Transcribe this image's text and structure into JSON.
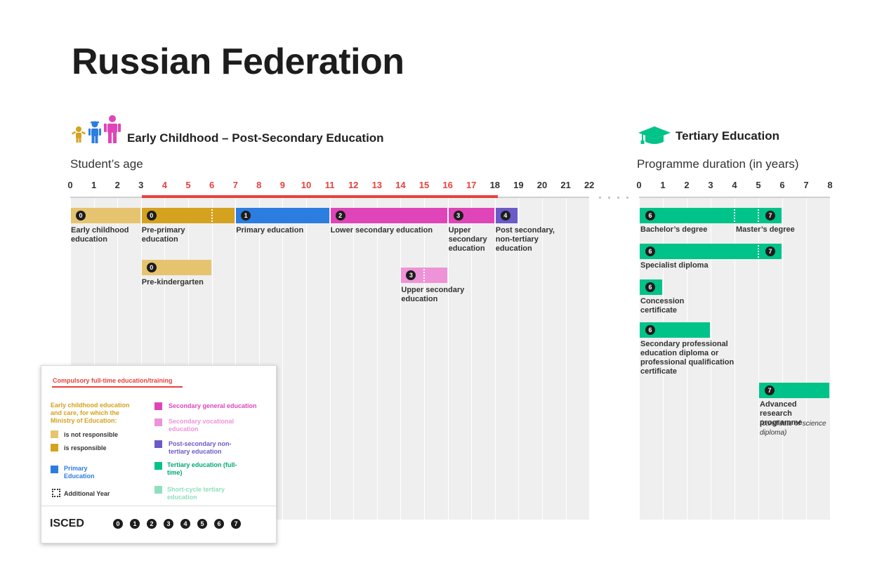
{
  "title": "Russian Federation",
  "left_section": {
    "title": "Early Childhood – Post-Secondary Education",
    "axis_title": "Student’s age",
    "ticks": [
      "0",
      "1",
      "2",
      "3",
      "4",
      "5",
      "6",
      "7",
      "8",
      "9",
      "10",
      "11",
      "12",
      "13",
      "14",
      "15",
      "16",
      "17",
      "18",
      "19",
      "20",
      "21",
      "22"
    ],
    "compulsory_range": [
      3,
      18
    ],
    "compulsory_tick_color": "#e8413c"
  },
  "right_section": {
    "title": "Tertiary Education",
    "axis_title": "Programme duration (in years)",
    "ticks": [
      "0",
      "1",
      "2",
      "3",
      "4",
      "5",
      "6",
      "7",
      "8"
    ]
  },
  "colors": {
    "ec_not_responsible": "#e6c46f",
    "ec_responsible": "#d4a21e",
    "primary": "#2b7de0",
    "secondary_general": "#df45b8",
    "secondary_vocational": "#ee93d8",
    "post_secondary": "#6b5bc8",
    "tertiary": "#00c389",
    "short_cycle": "#8fe0bd",
    "compulsory": "#e8413c"
  },
  "programmes": [
    {
      "id": "early-childhood",
      "start": 0,
      "end": 3,
      "color_key": "ec_not_responsible",
      "isced": "0",
      "label": "Early childhood education"
    },
    {
      "id": "pre-primary",
      "start": 3,
      "end": 7,
      "color_key": "ec_responsible",
      "isced": "0",
      "label": "Pre-primary education",
      "additional_year_at": 6
    },
    {
      "id": "primary",
      "start": 7,
      "end": 11,
      "color_key": "primary",
      "isced": "1",
      "label": "Primary education"
    },
    {
      "id": "lower-secondary",
      "start": 11,
      "end": 16,
      "color_key": "secondary_general",
      "isced": "2",
      "label": "Lower secondary education"
    },
    {
      "id": "upper-secondary-general",
      "start": 16,
      "end": 18,
      "color_key": "secondary_general",
      "isced": "3",
      "label": "Upper secondary education"
    },
    {
      "id": "post-secondary",
      "start": 18,
      "end": 19,
      "color_key": "post_secondary",
      "isced": "4",
      "label": "Post secondary, non-tertiary education"
    },
    {
      "id": "pre-kindergarten",
      "start": 3,
      "end": 6,
      "color_key": "ec_not_responsible",
      "isced": "0",
      "label": "Pre-kindergarten"
    },
    {
      "id": "upper-secondary-vocational",
      "start": 14,
      "end": 16,
      "color_key": "secondary_vocational",
      "isced": "3",
      "label": "Upper secondary education",
      "additional_year_at": 15
    }
  ],
  "tertiary_programmes": [
    {
      "id": "bachelor",
      "start": 0,
      "end": 6,
      "isced": "6",
      "label": "Bachelor’s degree",
      "second_isced": "7",
      "second_label": "Master’s degree",
      "divider_at": 4
    },
    {
      "id": "specialist",
      "start": 0,
      "end": 6,
      "isced": "6",
      "label": "Specialist diploma",
      "second_isced": "7"
    },
    {
      "id": "concession",
      "start": 0,
      "end": 1,
      "isced": "6",
      "label": "Concession certificate"
    },
    {
      "id": "secondary-professional",
      "start": 0,
      "end": 3,
      "isced": "6",
      "label": "Secondary professional education diploma or professional qualification certificate"
    },
    {
      "id": "advanced-research",
      "start": 5,
      "end": 8,
      "isced": "7",
      "label": "Advanced research programme",
      "note": "(candidate of science diploma)"
    }
  ],
  "legend": {
    "compulsory": "Compulsory full-time education/training",
    "ec_heading": "Early childhood education and care, for which the Ministry of Education:",
    "ec_not_responsible": "is not responsible",
    "ec_responsible": "is responsible",
    "primary": "Primary Education",
    "additional_year": "Additional Year",
    "secondary_general": "Secondary general education",
    "secondary_vocational": "Secondary vocational education",
    "post_secondary": "Post-secondary non-tertiary education",
    "tertiary": "Tertiary education (full-time)",
    "short_cycle": "Short-cycle tertiary education",
    "isced_label": "ISCED",
    "isced_levels": [
      "0",
      "1",
      "2",
      "3",
      "4",
      "5",
      "6",
      "7"
    ]
  }
}
